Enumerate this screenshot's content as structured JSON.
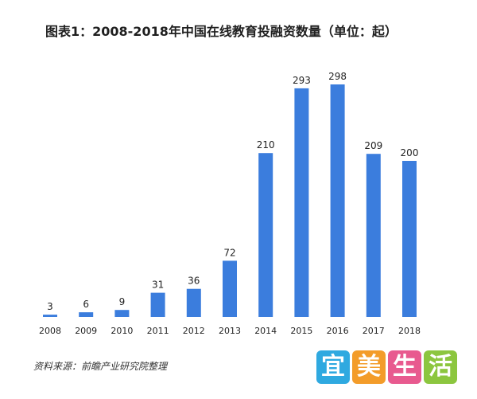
{
  "chart_data": {
    "type": "bar",
    "title": "图表1：2008-2018年中国在线教育投融资数量（单位：起）",
    "categories": [
      "2008",
      "2009",
      "2010",
      "2011",
      "2012",
      "2013",
      "2014",
      "2015",
      "2016",
      "2017",
      "2018"
    ],
    "values": [
      3,
      6,
      9,
      31,
      36,
      72,
      210,
      293,
      298,
      209,
      200
    ],
    "xlabel": "",
    "ylabel": "",
    "ylim": [
      0,
      298
    ],
    "grid": false,
    "legend": "none",
    "bar_color": "#3b7ddd",
    "data_labels": true
  },
  "source": "资料来源：前瞻产业研究院整理",
  "logo": {
    "characters": [
      "宜",
      "美",
      "生",
      "活"
    ],
    "colors": [
      "#2fa9e0",
      "#f39c2a",
      "#e85a8f",
      "#8cc63f"
    ]
  }
}
